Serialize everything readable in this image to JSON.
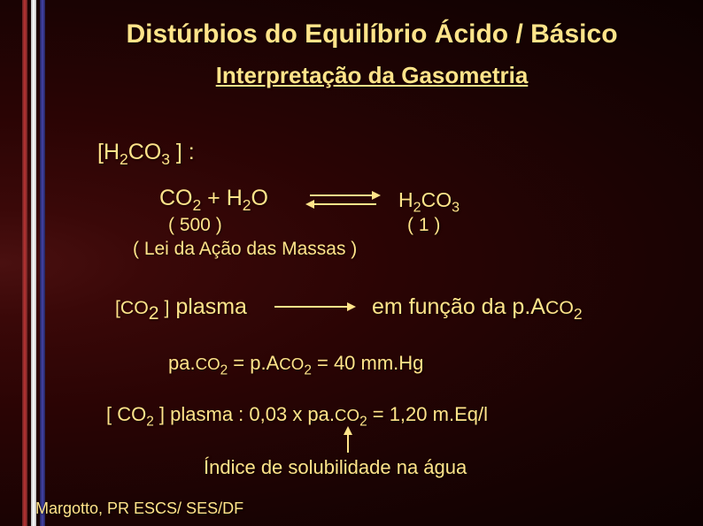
{
  "title": "Distúrbios do Equilíbrio Ácido / Básico",
  "subtitle": "Interpretação da Gasometria",
  "lines": {
    "h2co3_label_pre": "[H",
    "h2co3_label_sub1": "2",
    "h2co3_label_mid": "CO",
    "h2co3_label_sub2": "3",
    "h2co3_label_post": " ] :",
    "eq_left_pre": "CO",
    "eq_left_sub1": "2",
    "eq_left_mid": " + H",
    "eq_left_sub2": "2",
    "eq_left_post": "O",
    "eq_right_pre": "H",
    "eq_right_sub1": "2",
    "eq_right_mid": "CO",
    "eq_right_sub2": "3",
    "n500": "( 500 )",
    "n1": "( 1 )",
    "massas": "( Lei da Ação das Massas )",
    "co2p_pre": "[",
    "co2p_co": "CO",
    "co2p_sub": "2 ",
    "co2p_br": "]",
    "co2p_post": " plasma",
    "func_pre": "em função da p.A",
    "func_co": "CO",
    "func_sub": "2",
    "paco2_pre": "pa.",
    "paco2_co1": "CO",
    "paco2_sub1": "2",
    "paco2_mid": " = p.A",
    "paco2_co2": "CO",
    "paco2_sub2": "2",
    "paco2_post": " = 40 mm.Hg",
    "co2pl_pre": "[ CO",
    "co2pl_sub1": "2",
    "co2pl_mid": " ] plasma : 0,03 x pa.",
    "co2pl_co": "CO",
    "co2pl_sub2": "2",
    "co2pl_post": " = 1,20 m.Eq/l",
    "indice": "Índice de solubilidade na água",
    "footer": "Margotto, PR ESCS/ SES/DF"
  },
  "colors": {
    "text": "#ffe48a",
    "bg_inner": "#4a1010",
    "bg_outer": "#0d0101"
  },
  "fontsizes": {
    "title": 30,
    "subtitle": 26,
    "body": 25,
    "small": 21,
    "footer": 18
  }
}
